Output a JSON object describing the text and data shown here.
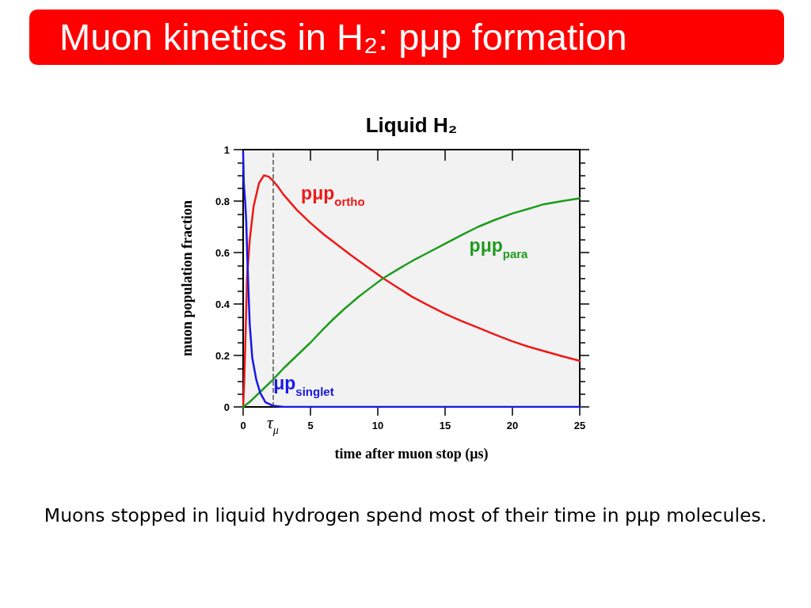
{
  "chart_data": {
    "type": "line",
    "title": "Muon kinetics in H₂: pμp formation",
    "subtitle": "Liquid H₂",
    "xlabel": "time after muon stop (μs)",
    "ylabel": "muon population fraction",
    "xlim": [
      0,
      25
    ],
    "xticks": [
      0,
      5,
      10,
      15,
      20,
      25
    ],
    "ylim": [
      0,
      1
    ],
    "yticks": [
      0,
      {
        "value": 0.05,
        "label": null
      },
      {
        "value": 0.1,
        "label": null
      },
      {
        "value": 0.15,
        "label": null
      },
      0.2,
      {
        "value": 0.25,
        "label": null
      },
      {
        "value": 0.3,
        "label": null
      },
      {
        "value": 0.35,
        "label": null
      },
      0.4,
      {
        "value": 0.45,
        "label": null
      },
      {
        "value": 0.5,
        "label": null
      },
      {
        "value": 0.55,
        "label": null
      },
      0.6,
      {
        "value": 0.65,
        "label": null
      },
      {
        "value": 0.7,
        "label": null
      },
      {
        "value": 0.75,
        "label": null
      },
      0.8,
      {
        "value": 0.85,
        "label": null
      },
      {
        "value": 0.9,
        "label": null
      },
      {
        "value": 0.95,
        "label": null
      },
      1
    ],
    "marker": "none",
    "series": [
      {
        "name": "pμp$_{ortho}$",
        "color": "#f01818",
        "x": [
          0,
          0.08,
          0.19,
          0.29,
          0.49,
          0.78,
          1.18,
          1.55,
          1.9,
          2.2,
          2.6,
          3,
          3.5,
          4,
          5,
          6,
          7,
          8,
          9,
          10.4,
          11.5,
          12.55,
          13.75,
          15,
          16.2,
          17.45,
          18.7,
          20,
          21.2,
          22.35,
          23.7,
          25
        ],
        "values": [
          0,
          0.1,
          0.3,
          0.5,
          0.65,
          0.78,
          0.87,
          0.9,
          0.895,
          0.88,
          0.855,
          0.825,
          0.795,
          0.765,
          0.715,
          0.67,
          0.63,
          0.59,
          0.552,
          0.5,
          0.463,
          0.428,
          0.395,
          0.362,
          0.334,
          0.308,
          0.281,
          0.255,
          0.234,
          0.217,
          0.197,
          0.179
        ]
      },
      {
        "name": "pμp$_{para}$",
        "color": "#1e9b1e",
        "x": [
          0,
          0.5,
          1,
          1.5,
          2.2,
          3,
          4,
          5,
          6,
          6.67,
          7.5,
          8.62,
          9.5,
          10.4,
          11.5,
          12.55,
          13.75,
          15,
          16.2,
          17.45,
          18.7,
          20,
          21.2,
          22.35,
          23.7,
          25
        ],
        "values": [
          0,
          0.02,
          0.045,
          0.07,
          0.105,
          0.15,
          0.2,
          0.25,
          0.305,
          0.34,
          0.38,
          0.43,
          0.465,
          0.5,
          0.535,
          0.567,
          0.6,
          0.634,
          0.667,
          0.7,
          0.727,
          0.752,
          0.77,
          0.788,
          0.8,
          0.811
        ]
      },
      {
        "name": "μp$_{singlet}$",
        "color": "#1818e8",
        "x": [
          0,
          0.05,
          0.15,
          0.23,
          0.3,
          0.39,
          0.49,
          0.68,
          0.98,
          1.27,
          1.66,
          2.2,
          3,
          25
        ],
        "values": [
          0.99,
          0.87,
          0.8,
          0.72,
          0.6,
          0.46,
          0.32,
          0.19,
          0.105,
          0.054,
          0.018,
          0.005,
          0,
          0
        ]
      }
    ],
    "ref_lines": [
      {
        "axis": "x",
        "value": 2.2,
        "label": "τ$_{μ}$",
        "color": "#555555",
        "line_style": "dashed"
      }
    ],
    "annotations": [
      "Muons stopped in liquid hydrogen spend most of their time in pμp molecules."
    ]
  }
}
